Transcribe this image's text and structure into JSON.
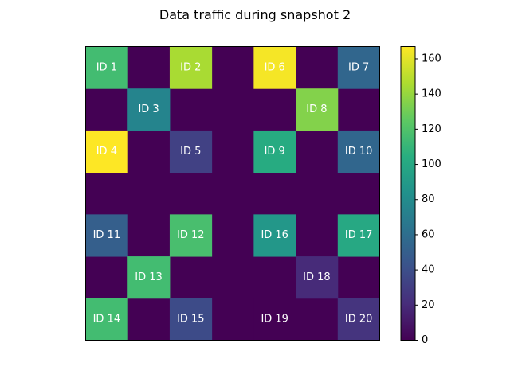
{
  "chart_data": {
    "type": "heatmap",
    "title": "Data traffic during snapshot 2",
    "rows": 7,
    "cols": 7,
    "colormap": "viridis",
    "vmin": 0,
    "vmax": 167,
    "colorbar_ticks": [
      0,
      20,
      40,
      60,
      80,
      100,
      120,
      140,
      160
    ],
    "cells": [
      {
        "label": "ID 1",
        "row": 0,
        "col": 0,
        "value": 115
      },
      {
        "label": "ID 2",
        "row": 0,
        "col": 2,
        "value": 145
      },
      {
        "label": "ID 6",
        "row": 0,
        "col": 4,
        "value": 165
      },
      {
        "label": "ID 7",
        "row": 0,
        "col": 6,
        "value": 55
      },
      {
        "label": "ID 3",
        "row": 1,
        "col": 1,
        "value": 75
      },
      {
        "label": "ID 8",
        "row": 1,
        "col": 5,
        "value": 135
      },
      {
        "label": "ID 4",
        "row": 2,
        "col": 0,
        "value": 167
      },
      {
        "label": "ID 5",
        "row": 2,
        "col": 2,
        "value": 32
      },
      {
        "label": "ID 9",
        "row": 2,
        "col": 4,
        "value": 102
      },
      {
        "label": "ID 10",
        "row": 2,
        "col": 6,
        "value": 55
      },
      {
        "label": "ID 11",
        "row": 4,
        "col": 0,
        "value": 50
      },
      {
        "label": "ID 12",
        "row": 4,
        "col": 2,
        "value": 117
      },
      {
        "label": "ID 16",
        "row": 4,
        "col": 4,
        "value": 88
      },
      {
        "label": "ID 17",
        "row": 4,
        "col": 6,
        "value": 100
      },
      {
        "label": "ID 13",
        "row": 5,
        "col": 1,
        "value": 115
      },
      {
        "label": "ID 18",
        "row": 5,
        "col": 5,
        "value": 20
      },
      {
        "label": "ID 14",
        "row": 6,
        "col": 0,
        "value": 115
      },
      {
        "label": "ID 15",
        "row": 6,
        "col": 2,
        "value": 38
      },
      {
        "label": "ID 19",
        "row": 6,
        "col": 4,
        "value": 0
      },
      {
        "label": "ID 20",
        "row": 6,
        "col": 6,
        "value": 25
      }
    ]
  }
}
